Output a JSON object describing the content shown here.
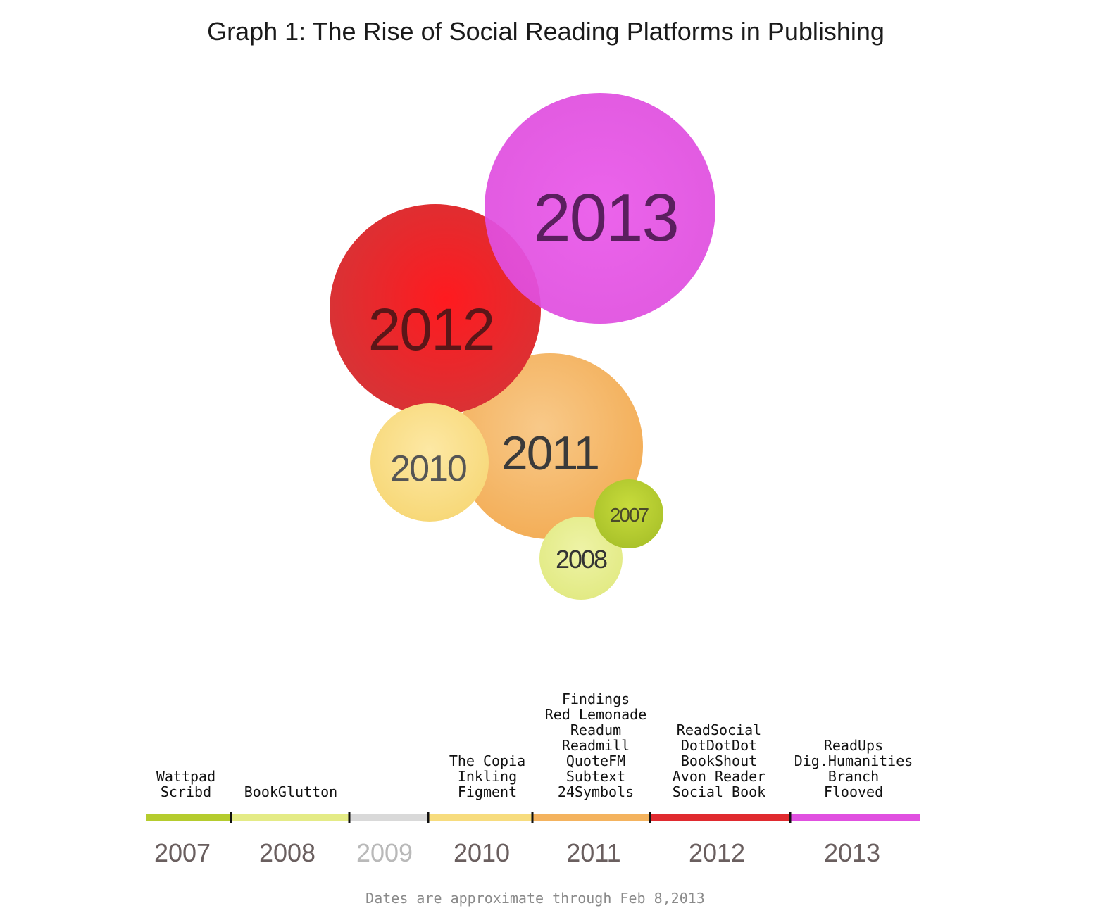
{
  "chart_data": {
    "type": "bubble",
    "title": "Graph 1: The Rise of Social Reading Platforms in Publishing",
    "footnote": "Dates are approximate through Feb 8,2013",
    "years": [
      {
        "year": "2007",
        "color": "#b5cc2e",
        "platforms": [
          "Wattpad",
          "Scribd"
        ],
        "count": 2
      },
      {
        "year": "2008",
        "color": "#e4eb86",
        "platforms": [
          "BookGlutton"
        ],
        "count": 1
      },
      {
        "year": "2009",
        "color": "#d9d9d9",
        "platforms": [],
        "count": 0
      },
      {
        "year": "2010",
        "color": "#f7dc7e",
        "platforms": [
          "The Copia",
          "Inkling",
          "Figment"
        ],
        "count": 3
      },
      {
        "year": "2011",
        "color": "#f4b35e",
        "platforms": [
          "Findings",
          "Red Lemonade",
          "Readum",
          "Readmill",
          "QuoteFM",
          "Subtext",
          "24Symbols"
        ],
        "count": 7
      },
      {
        "year": "2012",
        "color": "#e02a2f",
        "platforms": [
          "ReadSocial",
          "DotDotDot",
          "BookShout",
          "Avon Reader",
          "Social Book"
        ],
        "count": 5
      },
      {
        "year": "2013",
        "color": "#e050e0",
        "platforms": [
          "ReadUps",
          "Dig.Humanities",
          "Branch",
          "Flooved"
        ],
        "count": 4
      }
    ]
  }
}
